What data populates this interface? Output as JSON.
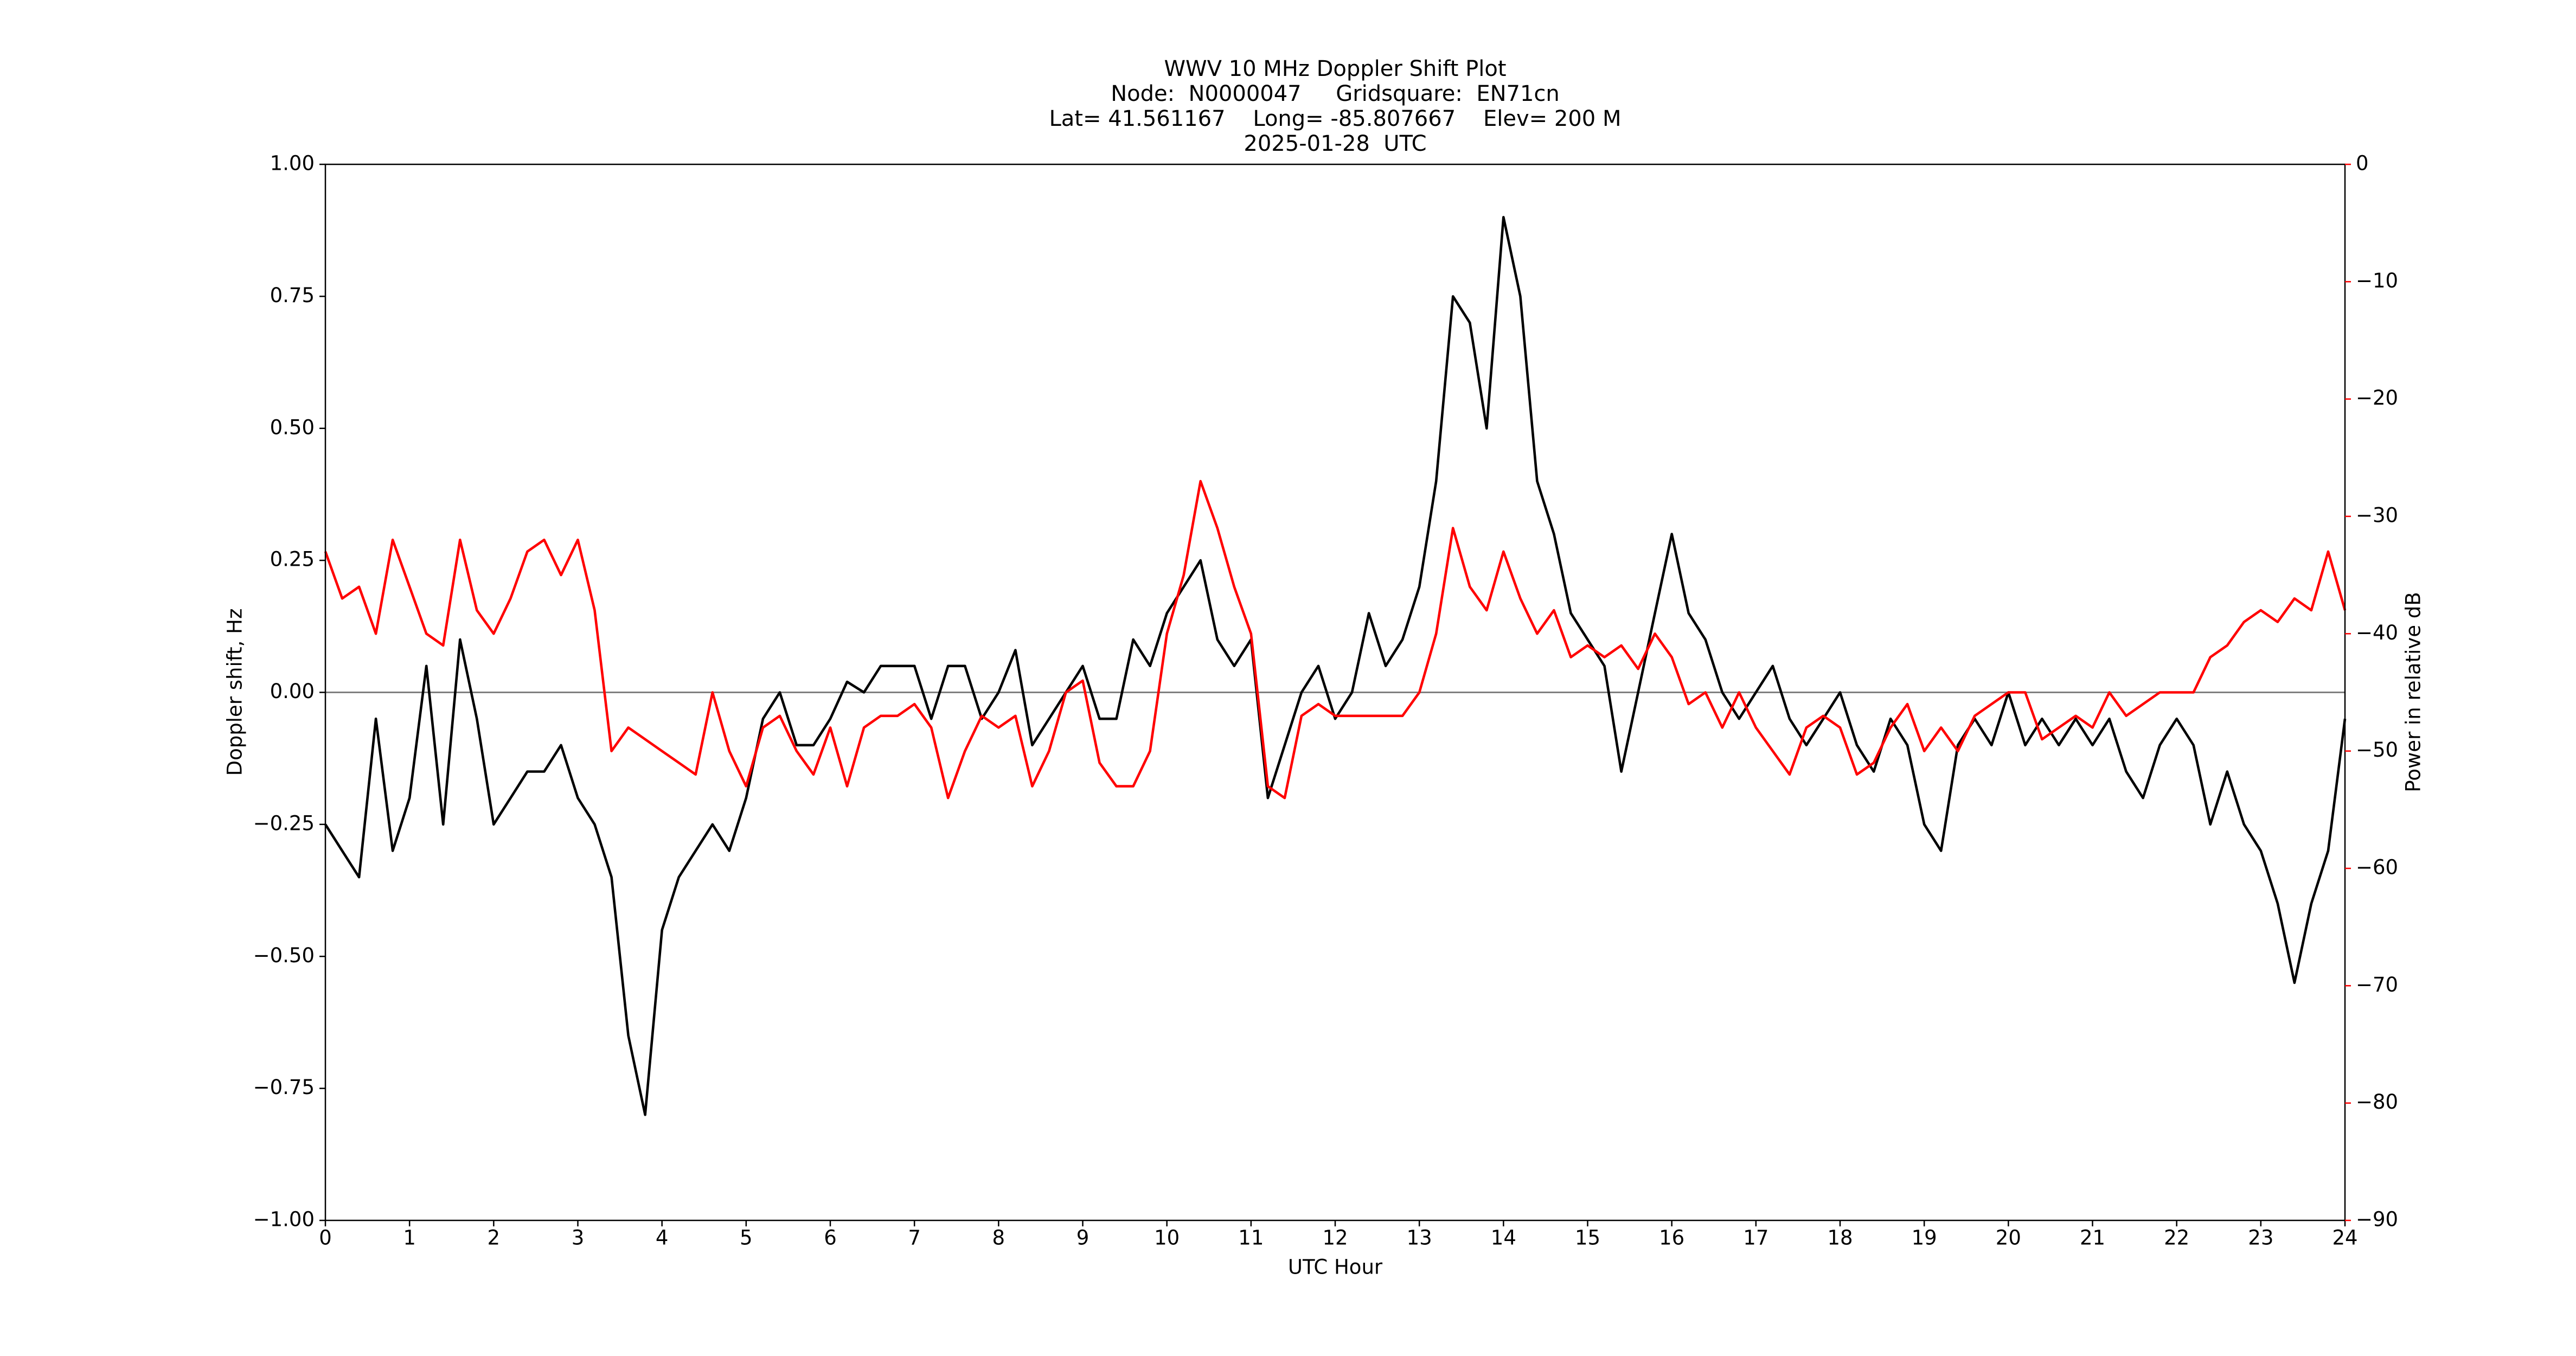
{
  "chart_data": {
    "type": "line",
    "title": [
      "WWV 10 MHz Doppler Shift Plot",
      "Node:  N0000047     Gridsquare:  EN71cn",
      "Lat= 41.561167    Long= -85.807667    Elev= 200 M",
      "2025-01-28  UTC"
    ],
    "x_label": "UTC Hour",
    "y_label": "Doppler shift, Hz",
    "y2_label": "Power in relative dB",
    "x": [
      0,
      0.2,
      0.4,
      0.6,
      0.8,
      1,
      1.2,
      1.4,
      1.6,
      1.8,
      2,
      2.2,
      2.4,
      2.6,
      2.8,
      3,
      3.2,
      3.4,
      3.6,
      3.8,
      4,
      4.2,
      4.4,
      4.6,
      4.8,
      5,
      5.2,
      5.4,
      5.6,
      5.8,
      6,
      6.2,
      6.4,
      6.6,
      6.8,
      7,
      7.2,
      7.4,
      7.6,
      7.8,
      8,
      8.2,
      8.4,
      8.6,
      8.8,
      9,
      9.2,
      9.4,
      9.6,
      9.8,
      10,
      10.2,
      10.4,
      10.6,
      10.8,
      11,
      11.2,
      11.4,
      11.6,
      11.8,
      12,
      12.2,
      12.4,
      12.6,
      12.8,
      13,
      13.2,
      13.4,
      13.6,
      13.8,
      14,
      14.2,
      14.4,
      14.6,
      14.8,
      15,
      15.2,
      15.4,
      15.6,
      15.8,
      16,
      16.2,
      16.4,
      16.6,
      16.8,
      17,
      17.2,
      17.4,
      17.6,
      17.8,
      18,
      18.2,
      18.4,
      18.6,
      18.8,
      19,
      19.2,
      19.4,
      19.6,
      19.8,
      20,
      20.2,
      20.4,
      20.6,
      20.8,
      21,
      21.2,
      21.4,
      21.6,
      21.8,
      22,
      22.2,
      22.4,
      22.6,
      22.8,
      23,
      23.2,
      23.4,
      23.6,
      23.8,
      24
    ],
    "series": [
      {
        "color": "#000000",
        "values": [
          -0.25,
          -0.3,
          -0.35,
          -0.05,
          -0.3,
          -0.2,
          0.05,
          -0.25,
          0.1,
          -0.05,
          -0.25,
          -0.2,
          -0.15,
          -0.15,
          -0.1,
          -0.2,
          -0.25,
          -0.35,
          -0.65,
          -0.8,
          -0.45,
          -0.35,
          -0.3,
          -0.25,
          -0.3,
          -0.2,
          -0.05,
          0,
          -0.1,
          -0.1,
          -0.05,
          0.02,
          0,
          0.05,
          0.05,
          0.05,
          -0.05,
          0.05,
          0.05,
          -0.05,
          0,
          0.08,
          -0.1,
          -0.05,
          0,
          0.05,
          -0.05,
          -0.05,
          0.1,
          0.05,
          0.15,
          0.2,
          0.25,
          0.1,
          0.05,
          0.1,
          -0.2,
          -0.1,
          0,
          0.05,
          -0.05,
          0,
          0.15,
          0.05,
          0.1,
          0.2,
          0.4,
          0.75,
          0.7,
          0.5,
          0.9,
          0.75,
          0.4,
          0.3,
          0.15,
          0.1,
          0.05,
          -0.15,
          0,
          0.15,
          0.3,
          0.15,
          0.1,
          0,
          -0.05,
          0,
          0.05,
          -0.05,
          -0.1,
          -0.05,
          0,
          -0.1,
          -0.15,
          -0.05,
          -0.1,
          -0.25,
          -0.3,
          -0.1,
          -0.05,
          -0.1,
          0,
          -0.1,
          -0.05,
          -0.1,
          -0.05,
          -0.1,
          -0.05,
          -0.15,
          -0.2,
          -0.1,
          -0.05,
          -0.1,
          -0.25,
          -0.15,
          -0.25,
          -0.3,
          -0.4,
          -0.55,
          -0.4,
          -0.3,
          -0.05
        ]
      },
      {
        "color": "#ff0000",
        "axis": "y2",
        "values": [
          -33,
          -37,
          -36,
          -40,
          -32,
          -36,
          -40,
          -41,
          -32,
          -38,
          -40,
          -37,
          -33,
          -32,
          -35,
          -32,
          -38,
          -50,
          -48,
          -49,
          -50,
          -51,
          -52,
          -45,
          -50,
          -53,
          -48,
          -47,
          -50,
          -52,
          -48,
          -53,
          -48,
          -47,
          -47,
          -46,
          -48,
          -54,
          -50,
          -47,
          -48,
          -47,
          -53,
          -50,
          -45,
          -44,
          -51,
          -53,
          -53,
          -50,
          -40,
          -35,
          -27,
          -31,
          -36,
          -40,
          -53,
          -54,
          -47,
          -46,
          -47,
          -47,
          -47,
          -47,
          -47,
          -45,
          -40,
          -31,
          -36,
          -38,
          -33,
          -37,
          -40,
          -38,
          -42,
          -41,
          -42,
          -41,
          -43,
          -40,
          -42,
          -46,
          -45,
          -48,
          -45,
          -48,
          -50,
          -52,
          -48,
          -47,
          -48,
          -52,
          -51,
          -48,
          -46,
          -50,
          -48,
          -50,
          -47,
          -46,
          -45,
          -45,
          -49,
          -48,
          -47,
          -48,
          -45,
          -47,
          -46,
          -45,
          -45,
          -45,
          -42,
          -41,
          -39,
          -38,
          -39,
          -37,
          -38,
          -33,
          -38
        ]
      }
    ],
    "xlim": [
      0,
      24
    ],
    "xticks": [
      0,
      1,
      2,
      3,
      4,
      5,
      6,
      7,
      8,
      9,
      10,
      11,
      12,
      13,
      14,
      15,
      16,
      17,
      18,
      19,
      20,
      21,
      22,
      23,
      24
    ],
    "ylim": [
      -1,
      1
    ],
    "yticks": [
      {
        "value": -1,
        "label": "−1.00"
      },
      {
        "value": -0.75,
        "label": "−0.75"
      },
      {
        "value": -0.5,
        "label": "−0.50"
      },
      {
        "value": -0.25,
        "label": "−0.25"
      },
      {
        "value": 0,
        "label": "0.00"
      },
      {
        "value": 0.25,
        "label": "0.25"
      },
      {
        "value": 0.5,
        "label": "0.50"
      },
      {
        "value": 0.75,
        "label": "0.75"
      },
      {
        "value": 1,
        "label": "1.00"
      }
    ],
    "y2lim": [
      -90,
      0
    ],
    "y2ticks": [
      {
        "value": -90,
        "label": "−90"
      },
      {
        "value": -80,
        "label": "−80"
      },
      {
        "value": -70,
        "label": "−70"
      },
      {
        "value": -60,
        "label": "−60"
      },
      {
        "value": -50,
        "label": "−50"
      },
      {
        "value": -40,
        "label": "−40"
      },
      {
        "value": -30,
        "label": "−30"
      },
      {
        "value": -20,
        "label": "−20"
      },
      {
        "value": -10,
        "label": "−10"
      },
      0
    ],
    "y2_color": "#ff0000",
    "hline": 0,
    "hline_color": "#808080"
  }
}
